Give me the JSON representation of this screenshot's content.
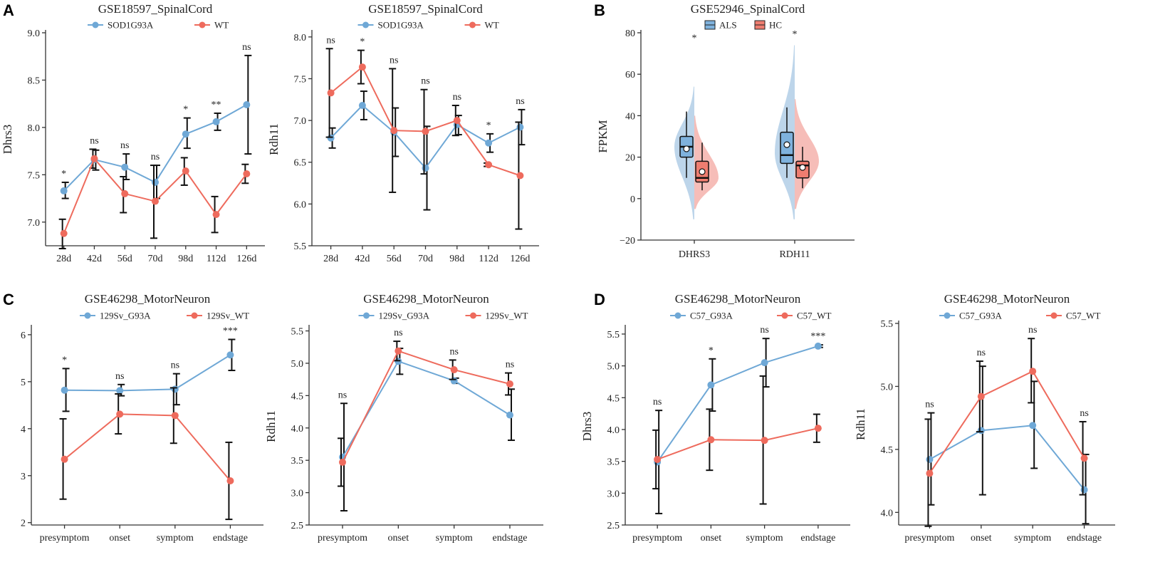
{
  "colors": {
    "g93a": "#6FA8D6",
    "wt": "#EE6B5D",
    "als_violin": "#BDD5EA",
    "hc_violin": "#F6BDB8",
    "als_box": "#7FB2DD",
    "hc_box": "#EE7D70"
  },
  "panels": [
    {
      "letter": "A",
      "title": "GSE18597_SpinalCord"
    },
    {
      "letter": "B",
      "title": "GSE52946_SpinalCord"
    },
    {
      "letter": "C",
      "title": "GSE46298_MotorNeuron"
    },
    {
      "letter": "D",
      "title": "GSE46298_MotorNeuron"
    }
  ],
  "chart_data": [
    {
      "id": "A1",
      "type": "line",
      "panel": "A",
      "title": "GSE18597_SpinalCord",
      "ylabel": "Dhrs3",
      "xlabel": "",
      "categories": [
        "28d",
        "42d",
        "56d",
        "70d",
        "98d",
        "112d",
        "126d"
      ],
      "ylim": [
        6.75,
        9.0
      ],
      "yticks": [
        7.0,
        7.5,
        8.0,
        8.5,
        9.0
      ],
      "ytick_labels": [
        "7.0",
        "7.5",
        "8.0",
        "8.5",
        "9.0"
      ],
      "series": [
        {
          "name": "SOD1G93A",
          "color": "#6FA8D6",
          "values": [
            7.33,
            7.66,
            7.58,
            7.42,
            7.93,
            8.06,
            8.24
          ],
          "lower": [
            7.25,
            7.55,
            7.45,
            7.25,
            7.78,
            7.97,
            7.72
          ],
          "upper": [
            7.42,
            7.76,
            7.72,
            7.6,
            8.1,
            8.15,
            8.76
          ]
        },
        {
          "name": "WT",
          "color": "#EE6B5D",
          "values": [
            6.88,
            7.67,
            7.3,
            7.22,
            7.54,
            7.08,
            7.51
          ],
          "lower": [
            6.72,
            7.57,
            7.1,
            6.83,
            7.39,
            6.89,
            7.41
          ],
          "upper": [
            7.03,
            7.77,
            7.48,
            7.6,
            7.68,
            7.27,
            7.61
          ]
        }
      ],
      "annotations": [
        "*",
        "ns",
        "ns",
        "ns",
        "*",
        "**",
        "ns"
      ]
    },
    {
      "id": "A2",
      "type": "line",
      "panel": "A",
      "title": "GSE18597_SpinalCord",
      "ylabel": "Rdh11",
      "xlabel": "",
      "categories": [
        "28d",
        "42d",
        "56d",
        "70d",
        "98d",
        "112d",
        "126d"
      ],
      "ylim": [
        5.5,
        8.05
      ],
      "yticks": [
        5.5,
        6.0,
        6.5,
        7.0,
        7.5,
        8.0
      ],
      "ytick_labels": [
        "5.5",
        "6.0",
        "6.5",
        "7.0",
        "7.5",
        "8.0"
      ],
      "series": [
        {
          "name": "SOD1G93A",
          "color": "#6FA8D6",
          "values": [
            6.79,
            7.18,
            6.86,
            6.43,
            6.95,
            6.73,
            6.92
          ],
          "lower": [
            6.67,
            7.01,
            6.57,
            5.93,
            6.83,
            6.62,
            6.71
          ],
          "upper": [
            6.91,
            7.35,
            7.15,
            6.93,
            7.06,
            6.84,
            7.13
          ]
        },
        {
          "name": "WT",
          "color": "#EE6B5D",
          "values": [
            7.33,
            7.64,
            6.88,
            6.87,
            7.0,
            6.47,
            6.34
          ],
          "lower": [
            6.8,
            7.44,
            6.14,
            6.36,
            6.82,
            6.45,
            5.7
          ],
          "upper": [
            7.86,
            7.84,
            7.62,
            7.37,
            7.18,
            6.49,
            6.98
          ]
        }
      ],
      "annotations": [
        "ns",
        "*",
        "ns",
        "ns",
        "ns",
        "*",
        "ns"
      ]
    },
    {
      "id": "B",
      "type": "violin",
      "panel": "B",
      "title": "GSE52946_SpinalCord",
      "ylabel": "FPKM",
      "xlabel": "",
      "categories": [
        "DHRS3",
        "RDH11"
      ],
      "ylim": [
        -20,
        80
      ],
      "yticks": [
        -20,
        0,
        20,
        40,
        60,
        80
      ],
      "ytick_labels": [
        "−20",
        "0",
        "20",
        "40",
        "60",
        "80"
      ],
      "legend": [
        "ALS",
        "HC"
      ],
      "groups": [
        {
          "category": "DHRS3",
          "annotation": "*",
          "ALS": {
            "min": 10,
            "q1": 20,
            "median": 25,
            "q3": 30,
            "max": 42,
            "mean": 24
          },
          "HC": {
            "min": 4,
            "q1": 8,
            "median": 10,
            "q3": 18,
            "max": 27,
            "mean": 13
          }
        },
        {
          "category": "RDH11",
          "annotation": "*",
          "ALS": {
            "min": 10,
            "q1": 17,
            "median": 21,
            "q3": 32,
            "max": 44,
            "mean": 26
          },
          "HC": {
            "min": 5,
            "q1": 10,
            "median": 16,
            "q3": 18,
            "max": 25,
            "mean": 15
          }
        }
      ]
    },
    {
      "id": "C1",
      "type": "line",
      "panel": "C",
      "title": "GSE46298_MotorNeuron",
      "ylabel": "Dhrs3",
      "xlabel": "",
      "categories": [
        "presymptom",
        "onset",
        "symptom",
        "endstage"
      ],
      "ylim": [
        1.95,
        6.15
      ],
      "yticks": [
        2,
        3,
        4,
        5,
        6
      ],
      "ytick_labels": [
        "2",
        "3",
        "4",
        "5",
        "6"
      ],
      "series": [
        {
          "name": "129Sv_G93A",
          "color": "#6FA8D6",
          "values": [
            4.82,
            4.81,
            4.84,
            5.57
          ],
          "lower": [
            4.37,
            4.7,
            4.51,
            5.24
          ],
          "upper": [
            5.28,
            4.94,
            5.17,
            5.9
          ]
        },
        {
          "name": "129Sv_WT",
          "color": "#EE6B5D",
          "values": [
            3.35,
            4.31,
            4.28,
            2.89
          ],
          "lower": [
            2.5,
            3.89,
            3.69,
            2.07
          ],
          "upper": [
            4.21,
            4.74,
            4.87,
            3.71
          ]
        }
      ],
      "annotations": [
        "*",
        "ns",
        "ns",
        "***"
      ]
    },
    {
      "id": "C2",
      "type": "line",
      "panel": "C",
      "title": "GSE46298_MotorNeuron",
      "ylabel": "Rdh11",
      "xlabel": "",
      "categories": [
        "presymptom",
        "onset",
        "symptom",
        "endstage"
      ],
      "ylim": [
        2.5,
        5.55
      ],
      "yticks": [
        2.5,
        3.0,
        3.5,
        4.0,
        4.5,
        5.0,
        5.5
      ],
      "ytick_labels": [
        "2.5",
        "3.0",
        "3.5",
        "4.0",
        "4.5",
        "5.0",
        "5.5"
      ],
      "series": [
        {
          "name": "129Sv_G93A",
          "color": "#6FA8D6",
          "values": [
            3.55,
            5.03,
            4.73,
            4.2
          ],
          "lower": [
            2.72,
            4.83,
            4.69,
            3.81
          ],
          "upper": [
            4.38,
            5.23,
            4.77,
            4.6
          ]
        },
        {
          "name": "129Sv_WT",
          "color": "#EE6B5D",
          "values": [
            3.47,
            5.19,
            4.9,
            4.68
          ],
          "lower": [
            3.1,
            5.04,
            4.75,
            4.51
          ],
          "upper": [
            3.84,
            5.34,
            5.05,
            4.85
          ]
        }
      ],
      "annotations": [
        "ns",
        "ns",
        "ns",
        "ns"
      ]
    },
    {
      "id": "D1",
      "type": "line",
      "panel": "D",
      "title": "GSE46298_MotorNeuron",
      "ylabel": "Dhrs3",
      "xlabel": "",
      "categories": [
        "presymptom",
        "onset",
        "symptom",
        "endstage"
      ],
      "ylim": [
        2.5,
        5.6
      ],
      "yticks": [
        2.5,
        3.0,
        3.5,
        4.0,
        4.5,
        5.0,
        5.5
      ],
      "ytick_labels": [
        "2.5",
        "3.0",
        "3.5",
        "4.0",
        "4.5",
        "5.0",
        "5.5"
      ],
      "series": [
        {
          "name": "C57_G93A",
          "color": "#6FA8D6",
          "values": [
            3.49,
            4.7,
            5.05,
            5.31
          ],
          "lower": [
            2.68,
            4.29,
            4.67,
            5.29
          ],
          "upper": [
            4.3,
            5.11,
            5.43,
            5.33
          ]
        },
        {
          "name": "C57_WT",
          "color": "#EE6B5D",
          "values": [
            3.53,
            3.84,
            3.83,
            4.02
          ],
          "lower": [
            3.07,
            3.36,
            2.83,
            3.8
          ],
          "upper": [
            3.99,
            4.32,
            4.84,
            4.24
          ]
        }
      ],
      "annotations": [
        "ns",
        "*",
        "ns",
        "***"
      ]
    },
    {
      "id": "D2",
      "type": "line",
      "panel": "D",
      "title": "GSE46298_MotorNeuron",
      "ylabel": "Rdh11",
      "xlabel": "",
      "categories": [
        "presymptom",
        "onset",
        "symptom",
        "endstage"
      ],
      "ylim": [
        3.9,
        5.5
      ],
      "yticks": [
        4.0,
        4.5,
        5.0,
        5.5
      ],
      "ytick_labels": [
        "4.0",
        "4.5",
        "5.0",
        "5.5"
      ],
      "series": [
        {
          "name": "C57_G93A",
          "color": "#6FA8D6",
          "values": [
            4.42,
            4.65,
            4.69,
            4.18
          ],
          "lower": [
            4.06,
            4.14,
            4.35,
            3.91
          ],
          "upper": [
            4.79,
            5.16,
            5.04,
            4.46
          ]
        },
        {
          "name": "C57_WT",
          "color": "#EE6B5D",
          "values": [
            4.31,
            4.92,
            5.12,
            4.43
          ],
          "lower": [
            3.89,
            4.64,
            4.87,
            4.14
          ],
          "upper": [
            4.74,
            5.2,
            5.38,
            4.72
          ]
        }
      ],
      "annotations": [
        "ns",
        "ns",
        "ns",
        "ns"
      ]
    }
  ]
}
